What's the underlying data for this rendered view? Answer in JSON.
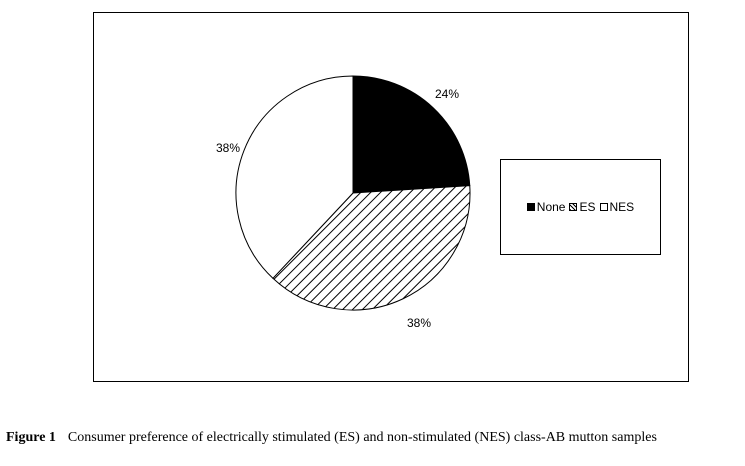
{
  "chart_data": {
    "type": "pie",
    "slices": [
      {
        "label": "None",
        "value": 24,
        "label_text": "24%",
        "fill": "solid"
      },
      {
        "label": "ES",
        "value": 38,
        "label_text": "38%",
        "fill": "hatch"
      },
      {
        "label": "NES",
        "value": 38,
        "label_text": "38%",
        "fill": "white"
      }
    ],
    "legend_position": "right",
    "colors": {
      "none": "#000000",
      "es": "hatched",
      "nes": "#ffffff"
    }
  },
  "caption": {
    "label": "Figure 1",
    "text": "Consumer preference of electrically stimulated (ES) and non-stimulated (NES) class-AB mutton samples"
  }
}
